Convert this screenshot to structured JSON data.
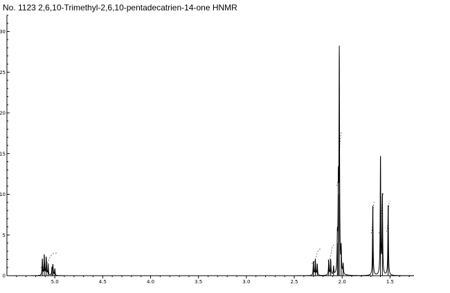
{
  "chart_data": {
    "type": "line",
    "title": "No. 1123 2,6,10-Trimethyl-2,6,10-pentadecatrien-14-one HNMR",
    "xlabel": "",
    "ylabel": "",
    "xlim": [
      5.5,
      1.25
    ],
    "ylim": [
      0,
      32
    ],
    "x_ticks": [
      "5.0",
      "4.5",
      "4.0",
      "3.5",
      "3.0",
      "2.5",
      "2.0",
      "1.5"
    ],
    "y_ticks": [
      "0",
      "5",
      "10",
      "15",
      "20",
      "25",
      "30"
    ],
    "grid": false,
    "peaks": [
      {
        "ppm": 5.13,
        "height": 2.0
      },
      {
        "ppm": 5.11,
        "height": 2.5
      },
      {
        "ppm": 5.09,
        "height": 2.2
      },
      {
        "ppm": 5.07,
        "height": 1.4
      },
      {
        "ppm": 5.03,
        "height": 0.9
      },
      {
        "ppm": 5.02,
        "height": 1.3
      },
      {
        "ppm": 5.0,
        "height": 0.8
      },
      {
        "ppm": 2.3,
        "height": 1.7
      },
      {
        "ppm": 2.28,
        "height": 2.0
      },
      {
        "ppm": 2.26,
        "height": 1.4
      },
      {
        "ppm": 2.14,
        "height": 1.9
      },
      {
        "ppm": 2.12,
        "height": 1.9
      },
      {
        "ppm": 2.09,
        "height": 1.0
      },
      {
        "ppm": 2.05,
        "height": 4.0
      },
      {
        "ppm": 2.04,
        "height": 10.0
      },
      {
        "ppm": 2.03,
        "height": 27.0
      },
      {
        "ppm": 2.01,
        "height": 3.0
      },
      {
        "ppm": 1.99,
        "height": 1.2
      },
      {
        "ppm": 1.68,
        "height": 8.6
      },
      {
        "ppm": 1.6,
        "height": 14.6
      },
      {
        "ppm": 1.58,
        "height": 9.8
      },
      {
        "ppm": 1.52,
        "height": 8.6
      }
    ],
    "integral_segments": [
      {
        "from_ppm": 5.15,
        "to_ppm": 4.98,
        "start": 1.0,
        "end": 2.8
      },
      {
        "from_ppm": 2.32,
        "to_ppm": 2.22,
        "start": 1.5,
        "end": 3.3
      },
      {
        "from_ppm": 2.15,
        "to_ppm": 2.08,
        "start": 1.8,
        "end": 3.8
      },
      {
        "from_ppm": 2.06,
        "to_ppm": 2.0,
        "start": 11.0,
        "end": 17.8
      },
      {
        "from_ppm": 1.7,
        "to_ppm": 1.66,
        "start": 5.2,
        "end": 9.2
      },
      {
        "from_ppm": 1.62,
        "to_ppm": 1.56,
        "start": 5.2,
        "end": 10.2
      },
      {
        "from_ppm": 1.54,
        "to_ppm": 1.5,
        "start": 5.4,
        "end": 9.2
      }
    ]
  }
}
